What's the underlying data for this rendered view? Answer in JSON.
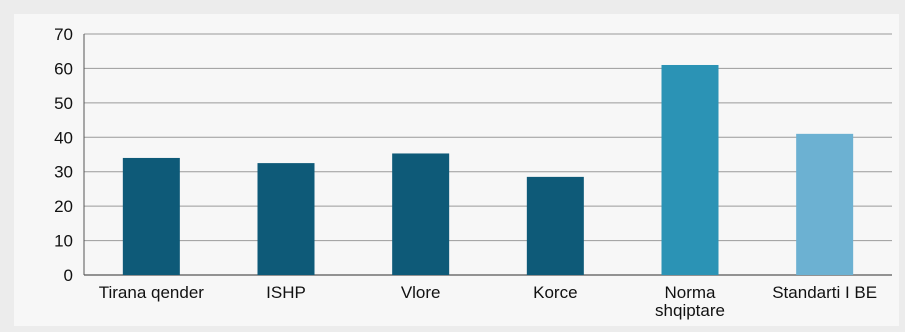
{
  "chart_data": {
    "type": "bar",
    "title": "",
    "xlabel": "",
    "ylabel": "",
    "ylim": [
      0,
      70
    ],
    "y_ticks": [
      0,
      10,
      20,
      30,
      40,
      50,
      60,
      70
    ],
    "grid": true,
    "legend": "none",
    "categories": [
      [
        "Tirana qender"
      ],
      [
        "ISHP"
      ],
      [
        "Vlore"
      ],
      [
        "Korce"
      ],
      [
        "Norma",
        "shqiptare"
      ],
      [
        "Standarti I BE"
      ]
    ],
    "values": [
      34,
      32.5,
      35.3,
      28.5,
      61,
      41
    ],
    "colors": [
      "#0e5a78",
      "#0e5a78",
      "#0e5a78",
      "#0e5a78",
      "#2b93b5",
      "#6cb1d2"
    ]
  }
}
